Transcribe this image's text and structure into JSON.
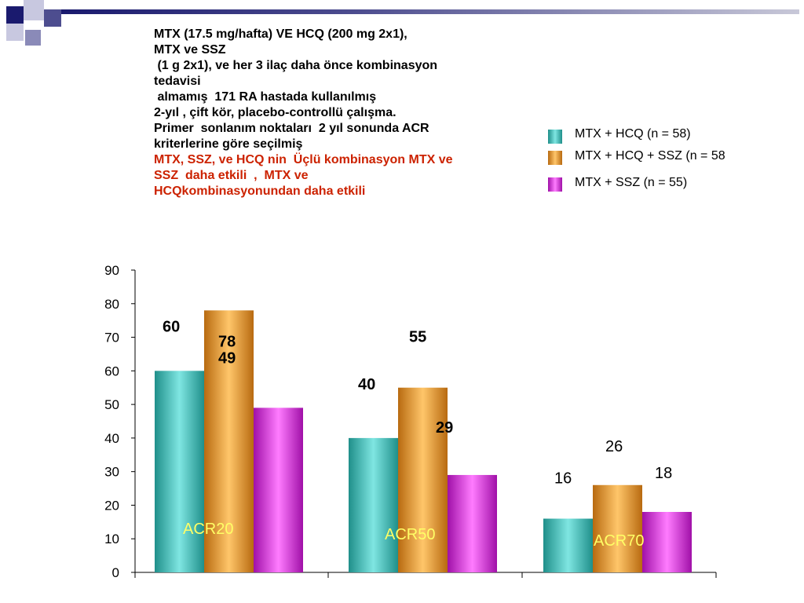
{
  "header": {
    "lines": [
      "MTX (17.5 mg/hafta) VE HCQ (200 mg 2x1),",
      "MTX ve SSZ",
      " (1 g 2x1), ve her 3 ilaç daha önce kombinasyon",
      "tedavisi",
      " almamış  171 RA hastada kullanılmış",
      "",
      "2-yıl , çift kör, placebo-controllü çalışma.",
      "",
      "Primer  sonlanım noktaları  2 yıl sonunda ACR",
      "kriterlerine göre seçilmiş",
      ""
    ],
    "conclusion_lines": [
      "MTX, SSZ, ve HCQ nin  Üçlü kombinasyon MTX ve",
      "SSZ  daha etkili  ,  MTX ve",
      "HCQkombinasyonundan daha etkili"
    ]
  },
  "legend": [
    {
      "label": "MTX + HCQ (n = 58)",
      "color": "#3ec9c4"
    },
    {
      "label": "MTX + HCQ + SSZ (n = 58",
      "color": "#f4a43a"
    },
    {
      "label": "MTX + SSZ (n = 55)",
      "color": "#f035f0"
    }
  ],
  "chart_data": {
    "type": "bar",
    "categories": [
      "ACR20",
      "ACR50",
      "ACR70"
    ],
    "series": [
      {
        "name": "MTX + HCQ (n = 58)",
        "values": [
          60,
          40,
          16
        ],
        "color": "#3ec9c4"
      },
      {
        "name": "MTX + HCQ + SSZ (n = 58",
        "values": [
          78,
          55,
          26
        ],
        "color": "#f4a43a"
      },
      {
        "name": "MTX + SSZ (n = 55)",
        "values": [
          49,
          29,
          18
        ],
        "color": "#f035f0"
      }
    ],
    "ylim": [
      0,
      90
    ],
    "yticks": [
      0,
      10,
      20,
      30,
      40,
      50,
      60,
      70,
      80,
      90
    ],
    "category_label_color": "#ffff66",
    "grid": false,
    "legend_position": "top-right"
  }
}
